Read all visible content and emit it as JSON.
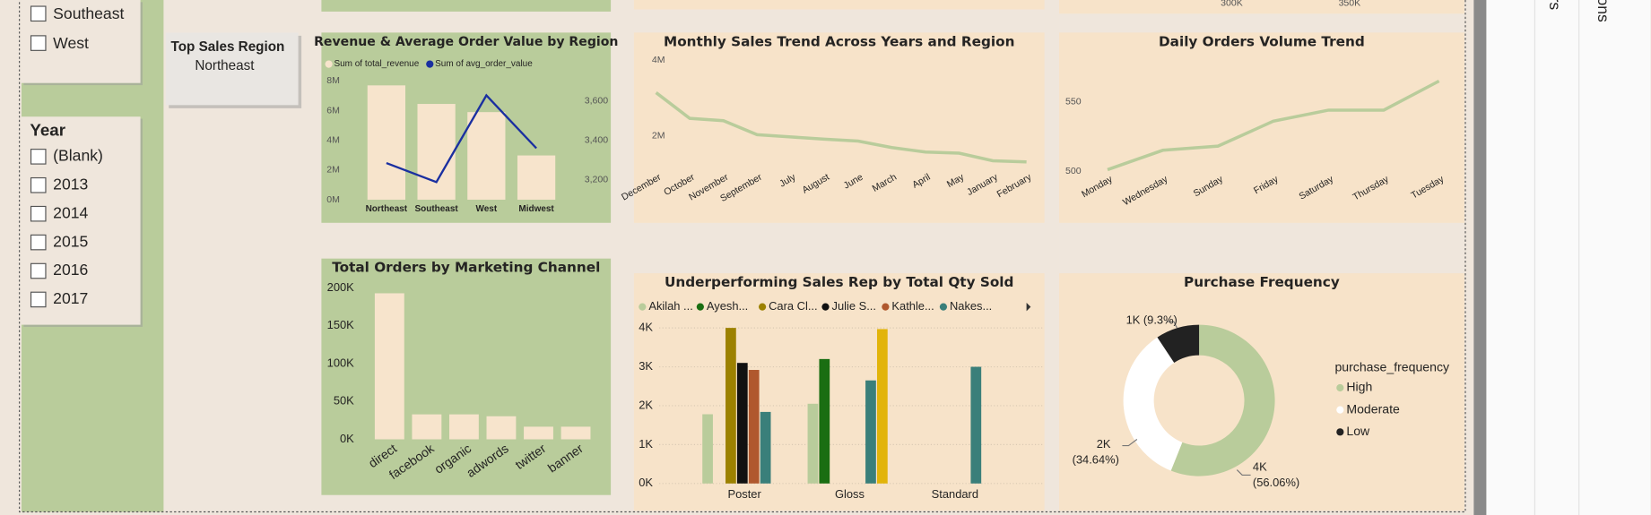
{
  "region_slicer": {
    "items": [
      "Southeast",
      "West"
    ]
  },
  "year_slicer": {
    "title": "Year",
    "items": [
      "(Blank)",
      "2013",
      "2014",
      "2015",
      "2016",
      "2017"
    ]
  },
  "card": {
    "title": "Top Sales Region",
    "value": "Northeast"
  },
  "clipped_labels": [
    "300K",
    "350K"
  ],
  "side_panes": [
    "rs",
    "ons"
  ],
  "chart_data": [
    {
      "type": "combo",
      "title": "Revenue & Average Order Value by Region",
      "categories": [
        "Northeast",
        "Southeast",
        "West",
        "Midwest"
      ],
      "series": [
        {
          "name": "Sum of total_revenue",
          "color": "#f7e4cc",
          "values": [
            7700000,
            6450000,
            5900000,
            2980000
          ]
        },
        {
          "name": "Sum of avg_order_value",
          "color": "#1a2fa0",
          "axis": "y2",
          "values": [
            3285,
            3189,
            3627,
            3360
          ]
        }
      ],
      "ylim": [
        0,
        8000000
      ],
      "yticks": [
        {
          "value": 0,
          "label": "0M"
        },
        {
          "value": 2000000,
          "label": "2M"
        },
        {
          "value": 4000000,
          "label": "4M"
        },
        {
          "value": 6000000,
          "label": "6M"
        },
        {
          "value": 8000000,
          "label": "8M"
        }
      ],
      "y2lim": [
        3100,
        3700
      ],
      "y2ticks": [
        {
          "value": 3200,
          "label": "3,200"
        },
        {
          "value": 3400,
          "label": "3,400"
        },
        {
          "value": 3600,
          "label": "3,600"
        }
      ]
    },
    {
      "type": "line",
      "title": "Monthly Sales Trend Across Years and Region",
      "categories": [
        "December",
        "October",
        "November",
        "September",
        "July",
        "August",
        "June",
        "March",
        "April",
        "May",
        "January",
        "February"
      ],
      "values": [
        3140000,
        2460000,
        2400000,
        2030000,
        1970000,
        1910000,
        1860000,
        1690000,
        1570000,
        1540000,
        1340000,
        1310000
      ],
      "color": "#b9cc9b",
      "ylim": [
        1200000,
        4200000
      ],
      "yticks": [
        {
          "value": 2000000,
          "label": "2M"
        },
        {
          "value": 4000000,
          "label": "4M"
        }
      ]
    },
    {
      "type": "line",
      "title": "Daily Orders Volume Trend",
      "categories": [
        "Monday",
        "Wednesday",
        "Sunday",
        "Friday",
        "Saturday",
        "Thursday",
        "Tuesday"
      ],
      "values": [
        501,
        515,
        518,
        536,
        544,
        544,
        565
      ],
      "color": "#b9cc9b",
      "ylim": [
        496,
        578
      ],
      "yticks": [
        500,
        550
      ]
    },
    {
      "type": "bar",
      "title": "Total Orders by Marketing Channel",
      "categories": [
        "direct",
        "facebook",
        "organic",
        "adwords",
        "twitter",
        "banner"
      ],
      "values": [
        193000,
        33000,
        33000,
        30500,
        16700,
        16700
      ],
      "color": "#f7e4cc",
      "ylim": [
        0,
        200000
      ],
      "yticks": [
        {
          "value": 0,
          "label": "0K"
        },
        {
          "value": 50000,
          "label": "50K"
        },
        {
          "value": 100000,
          "label": "100K"
        },
        {
          "value": 150000,
          "label": "150K"
        },
        {
          "value": 200000,
          "label": "200K"
        }
      ]
    },
    {
      "type": "grouped_bar",
      "title": "Underperforming Sales Rep by Total Qty Sold",
      "categories": [
        "Poster",
        "Gloss",
        "Standard"
      ],
      "series": [
        {
          "name": "Akilah ...",
          "color": "#b9cc9b",
          "values": [
            1780,
            2050,
            null
          ]
        },
        {
          "name": "Ayesh...",
          "color": "#1a6e12",
          "values": [
            null,
            3200,
            null
          ]
        },
        {
          "name": "Cara Cl...",
          "color": "#9c8100",
          "values": [
            4000,
            null,
            null
          ]
        },
        {
          "name": "Julie S...",
          "color": "#111111",
          "values": [
            3100,
            null,
            null
          ]
        },
        {
          "name": "Kathle...",
          "color": "#b0582e",
          "values": [
            2920,
            null,
            null
          ]
        },
        {
          "name": "Nakes...",
          "color": "#3a7f7a",
          "values": [
            1840,
            2650,
            3000
          ]
        },
        {
          "color": "#e2b40a",
          "values": [
            null,
            3970,
            null
          ]
        }
      ],
      "ylim": [
        0,
        4000
      ],
      "grid": true,
      "yticks": [
        {
          "value": 0,
          "label": "0K"
        },
        {
          "value": 1000,
          "label": "1K"
        },
        {
          "value": 2000,
          "label": "2K"
        },
        {
          "value": 3000,
          "label": "3K"
        },
        {
          "value": 4000,
          "label": "4K"
        }
      ]
    },
    {
      "type": "donut",
      "title": "Purchase Frequency",
      "legend_title": "purchase_frequency",
      "categories": [
        "High",
        "Moderate",
        "Low"
      ],
      "values": [
        56.06,
        34.64,
        9.3
      ],
      "value_labels": [
        "(56.06%)",
        "(34.64%)",
        "(9.3%)"
      ],
      "count_labels": [
        "4K",
        "2K",
        "1K"
      ],
      "colors": [
        "#b9cc9b",
        "#ffffff",
        "#222222"
      ]
    }
  ]
}
